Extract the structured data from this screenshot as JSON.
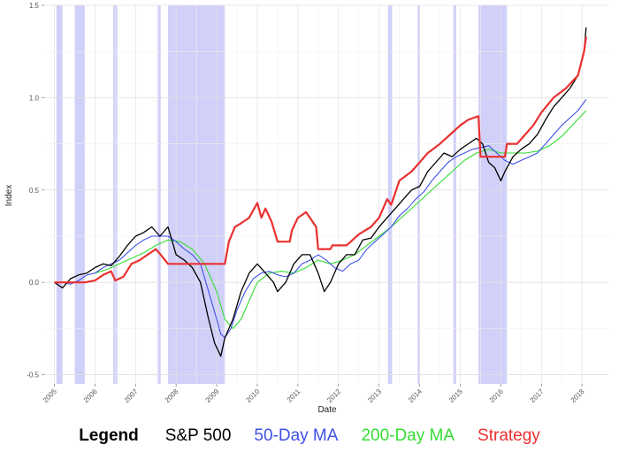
{
  "chart_data": {
    "type": "line",
    "title": "",
    "xlabel": "Date",
    "ylabel": "Index",
    "xlim": [
      2004.75,
      2018.65
    ],
    "ylim": [
      -0.55,
      1.5
    ],
    "x_ticks": [
      2005,
      2006,
      2007,
      2008,
      2009,
      2010,
      2011,
      2012,
      2013,
      2014,
      2015,
      2016,
      2017,
      2018
    ],
    "x_tick_labels": [
      "2005",
      "2006",
      "2007",
      "2008",
      "2009",
      "2010",
      "2011",
      "2012",
      "2013",
      "2014",
      "2015",
      "2016",
      "2017",
      "2018"
    ],
    "y_ticks": [
      -0.5,
      0.0,
      0.5,
      1.0,
      1.5
    ],
    "y_tick_labels": [
      "-0.5",
      "0.0",
      "0.5",
      "1.0",
      "1.5"
    ],
    "grid": true,
    "legend": {
      "title": "Legend",
      "position": "bottom"
    },
    "shaded_periods": [
      [
        2005.05,
        2005.2
      ],
      [
        2005.5,
        2005.75
      ],
      [
        2006.45,
        2006.55
      ],
      [
        2007.55,
        2007.62
      ],
      [
        2007.8,
        2009.2
      ],
      [
        2013.22,
        2013.32
      ],
      [
        2013.95,
        2014.0
      ],
      [
        2014.83,
        2014.9
      ],
      [
        2015.45,
        2016.15
      ]
    ],
    "shade_color": "#c8c8f8",
    "series": [
      {
        "name": "S&P 500",
        "color": "#000000",
        "x": [
          2005.0,
          2005.2,
          2005.4,
          2005.6,
          2005.8,
          2006.0,
          2006.2,
          2006.4,
          2006.6,
          2006.8,
          2007.0,
          2007.2,
          2007.4,
          2007.6,
          2007.8,
          2008.0,
          2008.2,
          2008.4,
          2008.6,
          2008.8,
          2008.95,
          2009.1,
          2009.2,
          2009.4,
          2009.6,
          2009.8,
          2010.0,
          2010.2,
          2010.4,
          2010.5,
          2010.7,
          2010.9,
          2011.1,
          2011.3,
          2011.5,
          2011.65,
          2011.8,
          2012.0,
          2012.2,
          2012.4,
          2012.6,
          2012.8,
          2013.0,
          2013.2,
          2013.4,
          2013.6,
          2013.8,
          2014.0,
          2014.2,
          2014.4,
          2014.6,
          2014.8,
          2015.0,
          2015.2,
          2015.4,
          2015.55,
          2015.7,
          2015.85,
          2016.0,
          2016.1,
          2016.3,
          2016.5,
          2016.7,
          2016.9,
          2017.1,
          2017.3,
          2017.5,
          2017.7,
          2017.9,
          2018.05,
          2018.1
        ],
        "y": [
          0.0,
          -0.03,
          0.02,
          0.04,
          0.05,
          0.08,
          0.1,
          0.09,
          0.14,
          0.2,
          0.25,
          0.27,
          0.3,
          0.25,
          0.3,
          0.15,
          0.12,
          0.08,
          0.0,
          -0.2,
          -0.33,
          -0.4,
          -0.3,
          -0.2,
          -0.05,
          0.05,
          0.1,
          0.05,
          0.0,
          -0.05,
          0.0,
          0.1,
          0.15,
          0.15,
          0.05,
          -0.05,
          0.0,
          0.1,
          0.15,
          0.15,
          0.23,
          0.24,
          0.3,
          0.35,
          0.4,
          0.45,
          0.5,
          0.52,
          0.6,
          0.65,
          0.7,
          0.68,
          0.72,
          0.75,
          0.78,
          0.75,
          0.65,
          0.62,
          0.55,
          0.6,
          0.68,
          0.72,
          0.75,
          0.8,
          0.88,
          0.95,
          1.0,
          1.05,
          1.12,
          1.25,
          1.38
        ]
      },
      {
        "name": "50-Day MA",
        "color": "#3f51e6",
        "x": [
          2005.2,
          2005.4,
          2005.6,
          2005.8,
          2006.0,
          2006.2,
          2006.4,
          2006.6,
          2006.8,
          2007.0,
          2007.2,
          2007.4,
          2007.6,
          2007.8,
          2008.0,
          2008.2,
          2008.4,
          2008.6,
          2008.8,
          2009.0,
          2009.1,
          2009.2,
          2009.35,
          2009.5,
          2009.7,
          2009.9,
          2010.1,
          2010.3,
          2010.5,
          2010.7,
          2010.9,
          2011.1,
          2011.3,
          2011.5,
          2011.7,
          2011.9,
          2012.1,
          2012.3,
          2012.5,
          2012.7,
          2012.9,
          2013.1,
          2013.3,
          2013.5,
          2013.7,
          2013.9,
          2014.1,
          2014.3,
          2014.5,
          2014.7,
          2014.9,
          2015.1,
          2015.3,
          2015.5,
          2015.7,
          2015.9,
          2016.1,
          2016.3,
          2016.5,
          2016.7,
          2016.9,
          2017.1,
          2017.3,
          2017.5,
          2017.7,
          2017.9,
          2018.1
        ],
        "y": [
          0.0,
          -0.01,
          0.01,
          0.04,
          0.05,
          0.08,
          0.1,
          0.12,
          0.16,
          0.2,
          0.23,
          0.25,
          0.25,
          0.25,
          0.22,
          0.18,
          0.15,
          0.1,
          -0.05,
          -0.2,
          -0.28,
          -0.3,
          -0.25,
          -0.15,
          -0.05,
          0.02,
          0.05,
          0.06,
          0.04,
          0.03,
          0.05,
          0.1,
          0.12,
          0.15,
          0.12,
          0.08,
          0.06,
          0.1,
          0.12,
          0.18,
          0.22,
          0.26,
          0.3,
          0.36,
          0.4,
          0.45,
          0.49,
          0.55,
          0.6,
          0.65,
          0.68,
          0.7,
          0.72,
          0.73,
          0.74,
          0.7,
          0.66,
          0.64,
          0.66,
          0.68,
          0.7,
          0.75,
          0.8,
          0.85,
          0.89,
          0.93,
          0.99
        ]
      },
      {
        "name": "200-Day MA",
        "color": "#33dd33",
        "x": [
          2006.0,
          2006.3,
          2006.6,
          2006.9,
          2007.2,
          2007.5,
          2007.8,
          2008.1,
          2008.4,
          2008.7,
          2009.0,
          2009.2,
          2009.4,
          2009.6,
          2009.8,
          2010.0,
          2010.3,
          2010.6,
          2010.9,
          2011.2,
          2011.5,
          2011.8,
          2012.1,
          2012.4,
          2012.7,
          2013.0,
          2013.3,
          2013.6,
          2013.9,
          2014.2,
          2014.5,
          2014.8,
          2015.1,
          2015.4,
          2015.7,
          2016.0,
          2016.3,
          2016.6,
          2016.9,
          2017.2,
          2017.5,
          2017.8,
          2018.1
        ],
        "y": [
          0.05,
          0.07,
          0.1,
          0.13,
          0.16,
          0.2,
          0.23,
          0.22,
          0.18,
          0.1,
          -0.05,
          -0.2,
          -0.25,
          -0.2,
          -0.1,
          0.0,
          0.05,
          0.06,
          0.05,
          0.08,
          0.12,
          0.1,
          0.12,
          0.15,
          0.2,
          0.25,
          0.3,
          0.36,
          0.42,
          0.48,
          0.54,
          0.6,
          0.66,
          0.7,
          0.72,
          0.7,
          0.7,
          0.7,
          0.71,
          0.74,
          0.79,
          0.86,
          0.93
        ]
      },
      {
        "name": "Strategy",
        "color": "#ea3030",
        "x": [
          2005.0,
          2005.25,
          2005.75,
          2006.0,
          2006.2,
          2006.4,
          2006.5,
          2006.7,
          2006.9,
          2007.1,
          2007.3,
          2007.5,
          2007.62,
          2007.8,
          2009.2,
          2009.3,
          2009.45,
          2009.6,
          2009.8,
          2010.0,
          2010.1,
          2010.2,
          2010.35,
          2010.5,
          2010.8,
          2010.85,
          2011.0,
          2011.2,
          2011.45,
          2011.5,
          2011.8,
          2011.85,
          2012.2,
          2012.5,
          2012.8,
          2013.0,
          2013.2,
          2013.3,
          2013.5,
          2013.8,
          2014.0,
          2014.2,
          2014.5,
          2014.85,
          2015.0,
          2015.2,
          2015.45,
          2015.5,
          2016.1,
          2016.15,
          2016.4,
          2016.6,
          2016.8,
          2017.0,
          2017.3,
          2017.6,
          2017.9,
          2018.05,
          2018.1
        ],
        "y": [
          0.0,
          0.0,
          0.0,
          0.01,
          0.04,
          0.06,
          0.01,
          0.03,
          0.1,
          0.12,
          0.15,
          0.18,
          0.15,
          0.1,
          0.1,
          0.22,
          0.3,
          0.32,
          0.35,
          0.43,
          0.35,
          0.4,
          0.33,
          0.22,
          0.22,
          0.28,
          0.35,
          0.38,
          0.3,
          0.18,
          0.18,
          0.2,
          0.2,
          0.26,
          0.3,
          0.35,
          0.45,
          0.42,
          0.55,
          0.6,
          0.65,
          0.7,
          0.75,
          0.82,
          0.85,
          0.88,
          0.9,
          0.68,
          0.68,
          0.75,
          0.75,
          0.8,
          0.85,
          0.92,
          1.0,
          1.05,
          1.12,
          1.25,
          1.33
        ]
      }
    ]
  }
}
